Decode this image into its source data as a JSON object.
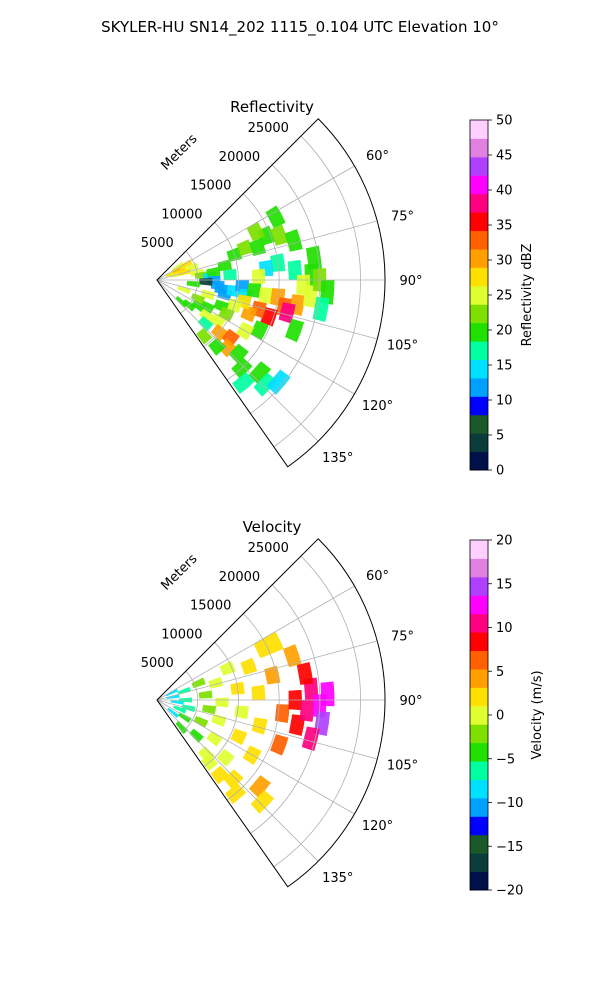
{
  "figure": {
    "title": "SKYLER-HU  SN14_202  1115_0.104 UTC Elevation 10°"
  },
  "chart_data": [
    {
      "type": "heatmap",
      "subtype": "polar-sector",
      "title": "Reflectivity",
      "range_axis_label": "Meters",
      "range_ticks": [
        "5000",
        "10000",
        "15000",
        "20000",
        "25000"
      ],
      "range_max": 28000,
      "azimuth_ticks": [
        "60°",
        "75°",
        "90°",
        "105°",
        "120°",
        "135°"
      ],
      "azimuth_range": [
        45,
        145
      ],
      "grid": true,
      "colorbar": {
        "label": "Reflectivity dBZ",
        "min": 0,
        "max": 50,
        "ticks": [
          "0",
          "5",
          "10",
          "15",
          "20",
          "25",
          "30",
          "35",
          "40",
          "45",
          "50"
        ],
        "stops": [
          "#00104a",
          "#0a3d3a",
          "#1a5a2a",
          "#0000ff",
          "#00a0ff",
          "#00e0ff",
          "#00ffa0",
          "#20e000",
          "#7de000",
          "#e0ff30",
          "#ffe000",
          "#ffa000",
          "#ff6000",
          "#ff0000",
          "#ff0080",
          "#ff00ff",
          "#b040ff",
          "#e080e0",
          "#ffd0ff"
        ],
        "palette": [
          "#ffe030",
          "#ffd020",
          "#a0e020",
          "#7dd000",
          "#30d060",
          "#00e0c0",
          "#00c8ff",
          "#e0ff40",
          "#ff8000",
          "#ff3000"
        ]
      },
      "cells": [
        [
          2000,
          64,
          26
        ],
        [
          2000,
          68,
          28
        ],
        [
          3000,
          66,
          30
        ],
        [
          3000,
          70,
          27
        ],
        [
          3000,
          58,
          24
        ],
        [
          4000,
          62,
          27
        ],
        [
          4500,
          70,
          26
        ],
        [
          2500,
          76,
          25
        ],
        [
          3500,
          75,
          27
        ],
        [
          5000,
          80,
          24
        ],
        [
          5500,
          84,
          22
        ],
        [
          6500,
          86,
          14
        ],
        [
          7000,
          90,
          13
        ],
        [
          7500,
          95,
          12
        ],
        [
          8000,
          98,
          11
        ],
        [
          6000,
          92,
          5
        ],
        [
          8500,
          102,
          13
        ],
        [
          9500,
          98,
          14
        ],
        [
          10500,
          94,
          12
        ],
        [
          11000,
          100,
          14
        ],
        [
          12000,
          96,
          21
        ],
        [
          13500,
          98,
          24
        ],
        [
          15000,
          98,
          31
        ],
        [
          16000,
          102,
          33
        ],
        [
          17500,
          100,
          30
        ],
        [
          19000,
          96,
          25
        ],
        [
          16500,
          104,
          38
        ],
        [
          14500,
          108,
          36
        ],
        [
          13000,
          106,
          33
        ],
        [
          12000,
          110,
          30
        ],
        [
          11000,
          104,
          28
        ],
        [
          10000,
          108,
          24
        ],
        [
          8500,
          112,
          21
        ],
        [
          7000,
          118,
          19
        ],
        [
          6000,
          122,
          21
        ],
        [
          5000,
          128,
          19
        ],
        [
          4000,
          132,
          21
        ],
        [
          7500,
          126,
          24
        ],
        [
          9000,
          124,
          26
        ],
        [
          10000,
          130,
          30
        ],
        [
          11500,
          128,
          34
        ],
        [
          12000,
          134,
          31
        ],
        [
          13500,
          132,
          21
        ],
        [
          15000,
          136,
          19
        ],
        [
          16500,
          140,
          17
        ],
        [
          17000,
          132,
          19
        ],
        [
          18500,
          134,
          18
        ],
        [
          19500,
          130,
          15
        ],
        [
          9000,
          140,
          22
        ],
        [
          11000,
          138,
          21
        ],
        [
          7000,
          82,
          19
        ],
        [
          8500,
          78,
          21
        ],
        [
          10000,
          72,
          20
        ],
        [
          11500,
          70,
          22
        ],
        [
          13000,
          72,
          21
        ],
        [
          14500,
          68,
          20
        ],
        [
          16000,
          70,
          22
        ],
        [
          17500,
          74,
          19
        ],
        [
          15000,
          82,
          17
        ],
        [
          13500,
          84,
          15
        ],
        [
          17000,
          86,
          18
        ],
        [
          19000,
          88,
          20
        ],
        [
          20000,
          90,
          22
        ],
        [
          21000,
          94,
          19
        ],
        [
          19500,
          82,
          21
        ],
        [
          16500,
          62,
          21
        ],
        [
          20500,
          100,
          17
        ],
        [
          13500,
          64,
          22
        ],
        [
          12500,
          88,
          24
        ],
        [
          18000,
          92,
          26
        ],
        [
          9000,
          86,
          16
        ],
        [
          6500,
          106,
          24
        ],
        [
          4500,
          96,
          21
        ],
        [
          3500,
          110,
          24
        ],
        [
          5500,
          114,
          22
        ],
        [
          8000,
          132,
          18
        ],
        [
          14000,
          116,
          20
        ],
        [
          18000,
          110,
          20
        ],
        [
          12500,
          120,
          25
        ],
        [
          9500,
          116,
          23
        ]
      ]
    },
    {
      "type": "heatmap",
      "subtype": "polar-sector",
      "title": "Velocity",
      "range_axis_label": "Meters",
      "range_ticks": [
        "5000",
        "10000",
        "15000",
        "20000",
        "25000"
      ],
      "range_max": 28000,
      "azimuth_ticks": [
        "60°",
        "75°",
        "90°",
        "105°",
        "120°",
        "135°"
      ],
      "azimuth_range": [
        45,
        145
      ],
      "grid": true,
      "colorbar": {
        "label": "Velocity (m/s)",
        "min": -20,
        "max": 20,
        "ticks": [
          "−20",
          "−15",
          "−10",
          "−5",
          "0",
          "5",
          "10",
          "15",
          "20"
        ],
        "stops": [
          "#00104a",
          "#0a3d3a",
          "#1a5a2a",
          "#0000ff",
          "#00a0ff",
          "#00e0ff",
          "#00ffa0",
          "#20e000",
          "#7de000",
          "#e0ff30",
          "#ffe000",
          "#ffa000",
          "#ff6000",
          "#ff0000",
          "#ff0080",
          "#ff00ff",
          "#b040ff",
          "#e080e0",
          "#ffd0ff"
        ],
        "palette": [
          "#ffe030",
          "#ffd020",
          "#a0e020",
          "#7dd000",
          "#30d060",
          "#00e0c0",
          "#00c8ff",
          "#e0ff40",
          "#ff8000",
          "#ff3000"
        ]
      },
      "cells": [
        [
          2000,
          64,
          -8
        ],
        [
          2000,
          80,
          -9
        ],
        [
          2500,
          96,
          -8
        ],
        [
          3000,
          112,
          -7
        ],
        [
          2500,
          128,
          -9
        ],
        [
          3500,
          72,
          -6
        ],
        [
          3500,
          90,
          -7
        ],
        [
          4000,
          104,
          -6
        ],
        [
          4000,
          122,
          -5
        ],
        [
          4500,
          138,
          -4
        ],
        [
          5500,
          68,
          -3
        ],
        [
          6000,
          84,
          -2
        ],
        [
          6500,
          100,
          -2
        ],
        [
          6000,
          116,
          -3
        ],
        [
          6500,
          132,
          -4
        ],
        [
          7500,
          74,
          0
        ],
        [
          8000,
          92,
          1
        ],
        [
          8000,
          108,
          0
        ],
        [
          8500,
          124,
          -1
        ],
        [
          9000,
          138,
          0
        ],
        [
          9500,
          66,
          1
        ],
        [
          10000,
          82,
          2
        ],
        [
          10500,
          98,
          1
        ],
        [
          11000,
          114,
          2
        ],
        [
          11000,
          130,
          1
        ],
        [
          12000,
          70,
          3
        ],
        [
          12500,
          86,
          2
        ],
        [
          13000,
          104,
          3
        ],
        [
          13500,
          120,
          2
        ],
        [
          13500,
          136,
          3
        ],
        [
          14500,
          78,
          4
        ],
        [
          15500,
          96,
          6
        ],
        [
          16000,
          110,
          7
        ],
        [
          17000,
          90,
          8
        ],
        [
          17500,
          100,
          9
        ],
        [
          18500,
          94,
          10
        ],
        [
          19000,
          86,
          11
        ],
        [
          20000,
          92,
          12
        ],
        [
          20500,
          98,
          14
        ],
        [
          19500,
          104,
          10
        ],
        [
          16000,
          64,
          3
        ],
        [
          17500,
          72,
          5
        ],
        [
          14500,
          64,
          3
        ],
        [
          16500,
          130,
          4
        ],
        [
          18000,
          134,
          3
        ],
        [
          12000,
          140,
          2
        ],
        [
          15000,
          140,
          3
        ],
        [
          10000,
          140,
          1
        ],
        [
          18500,
          80,
          9
        ],
        [
          21000,
          88,
          13
        ]
      ]
    }
  ]
}
